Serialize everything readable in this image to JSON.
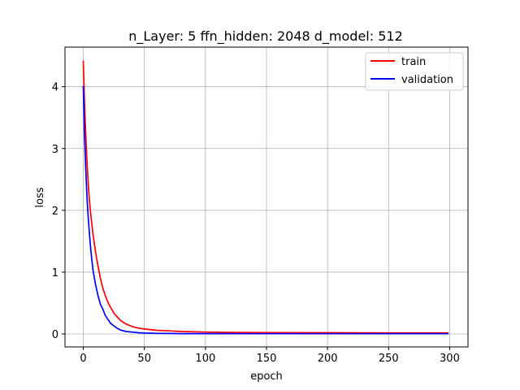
{
  "chart_data": {
    "type": "line",
    "title": "n_Layer: 5 ffn_hidden: 2048 d_model: 512",
    "xlabel": "epoch",
    "ylabel": "loss",
    "xlim": [
      -15,
      315
    ],
    "ylim": [
      -0.21,
      4.64
    ],
    "x_ticks": [
      0,
      50,
      100,
      150,
      200,
      250,
      300
    ],
    "y_ticks": [
      0,
      1,
      2,
      3,
      4
    ],
    "grid": true,
    "legend_position": "top-right",
    "series": [
      {
        "name": "train",
        "color": "#ff0000",
        "x": [
          0,
          1,
          2,
          3,
          4,
          5,
          6,
          7,
          8,
          10,
          12,
          14,
          16,
          18,
          20,
          22,
          25,
          28,
          31,
          35,
          40,
          45,
          50,
          60,
          70,
          80,
          100,
          120,
          150,
          200,
          250,
          299
        ],
        "y": [
          4.42,
          3.75,
          3.2,
          2.78,
          2.43,
          2.15,
          1.95,
          1.77,
          1.6,
          1.33,
          1.1,
          0.9,
          0.74,
          0.62,
          0.52,
          0.44,
          0.34,
          0.27,
          0.21,
          0.16,
          0.12,
          0.095,
          0.08,
          0.06,
          0.05,
          0.04,
          0.03,
          0.025,
          0.022,
          0.02,
          0.018,
          0.017
        ]
      },
      {
        "name": "validation",
        "color": "#0000ff",
        "x": [
          0,
          1,
          2,
          3,
          4,
          5,
          6,
          7,
          8,
          10,
          12,
          14,
          16,
          18,
          20,
          22,
          25,
          28,
          31,
          35,
          40,
          45,
          50,
          60,
          70,
          80,
          100,
          120,
          150,
          200,
          250,
          299
        ],
        "y": [
          4.01,
          3.2,
          2.65,
          2.2,
          1.88,
          1.62,
          1.38,
          1.19,
          1.02,
          0.8,
          0.62,
          0.48,
          0.4,
          0.3,
          0.24,
          0.18,
          0.13,
          0.09,
          0.06,
          0.04,
          0.03,
          0.02,
          0.015,
          0.01,
          0.008,
          0.006,
          0.005,
          0.005,
          0.004,
          0.004,
          0.004,
          0.004
        ]
      }
    ]
  }
}
